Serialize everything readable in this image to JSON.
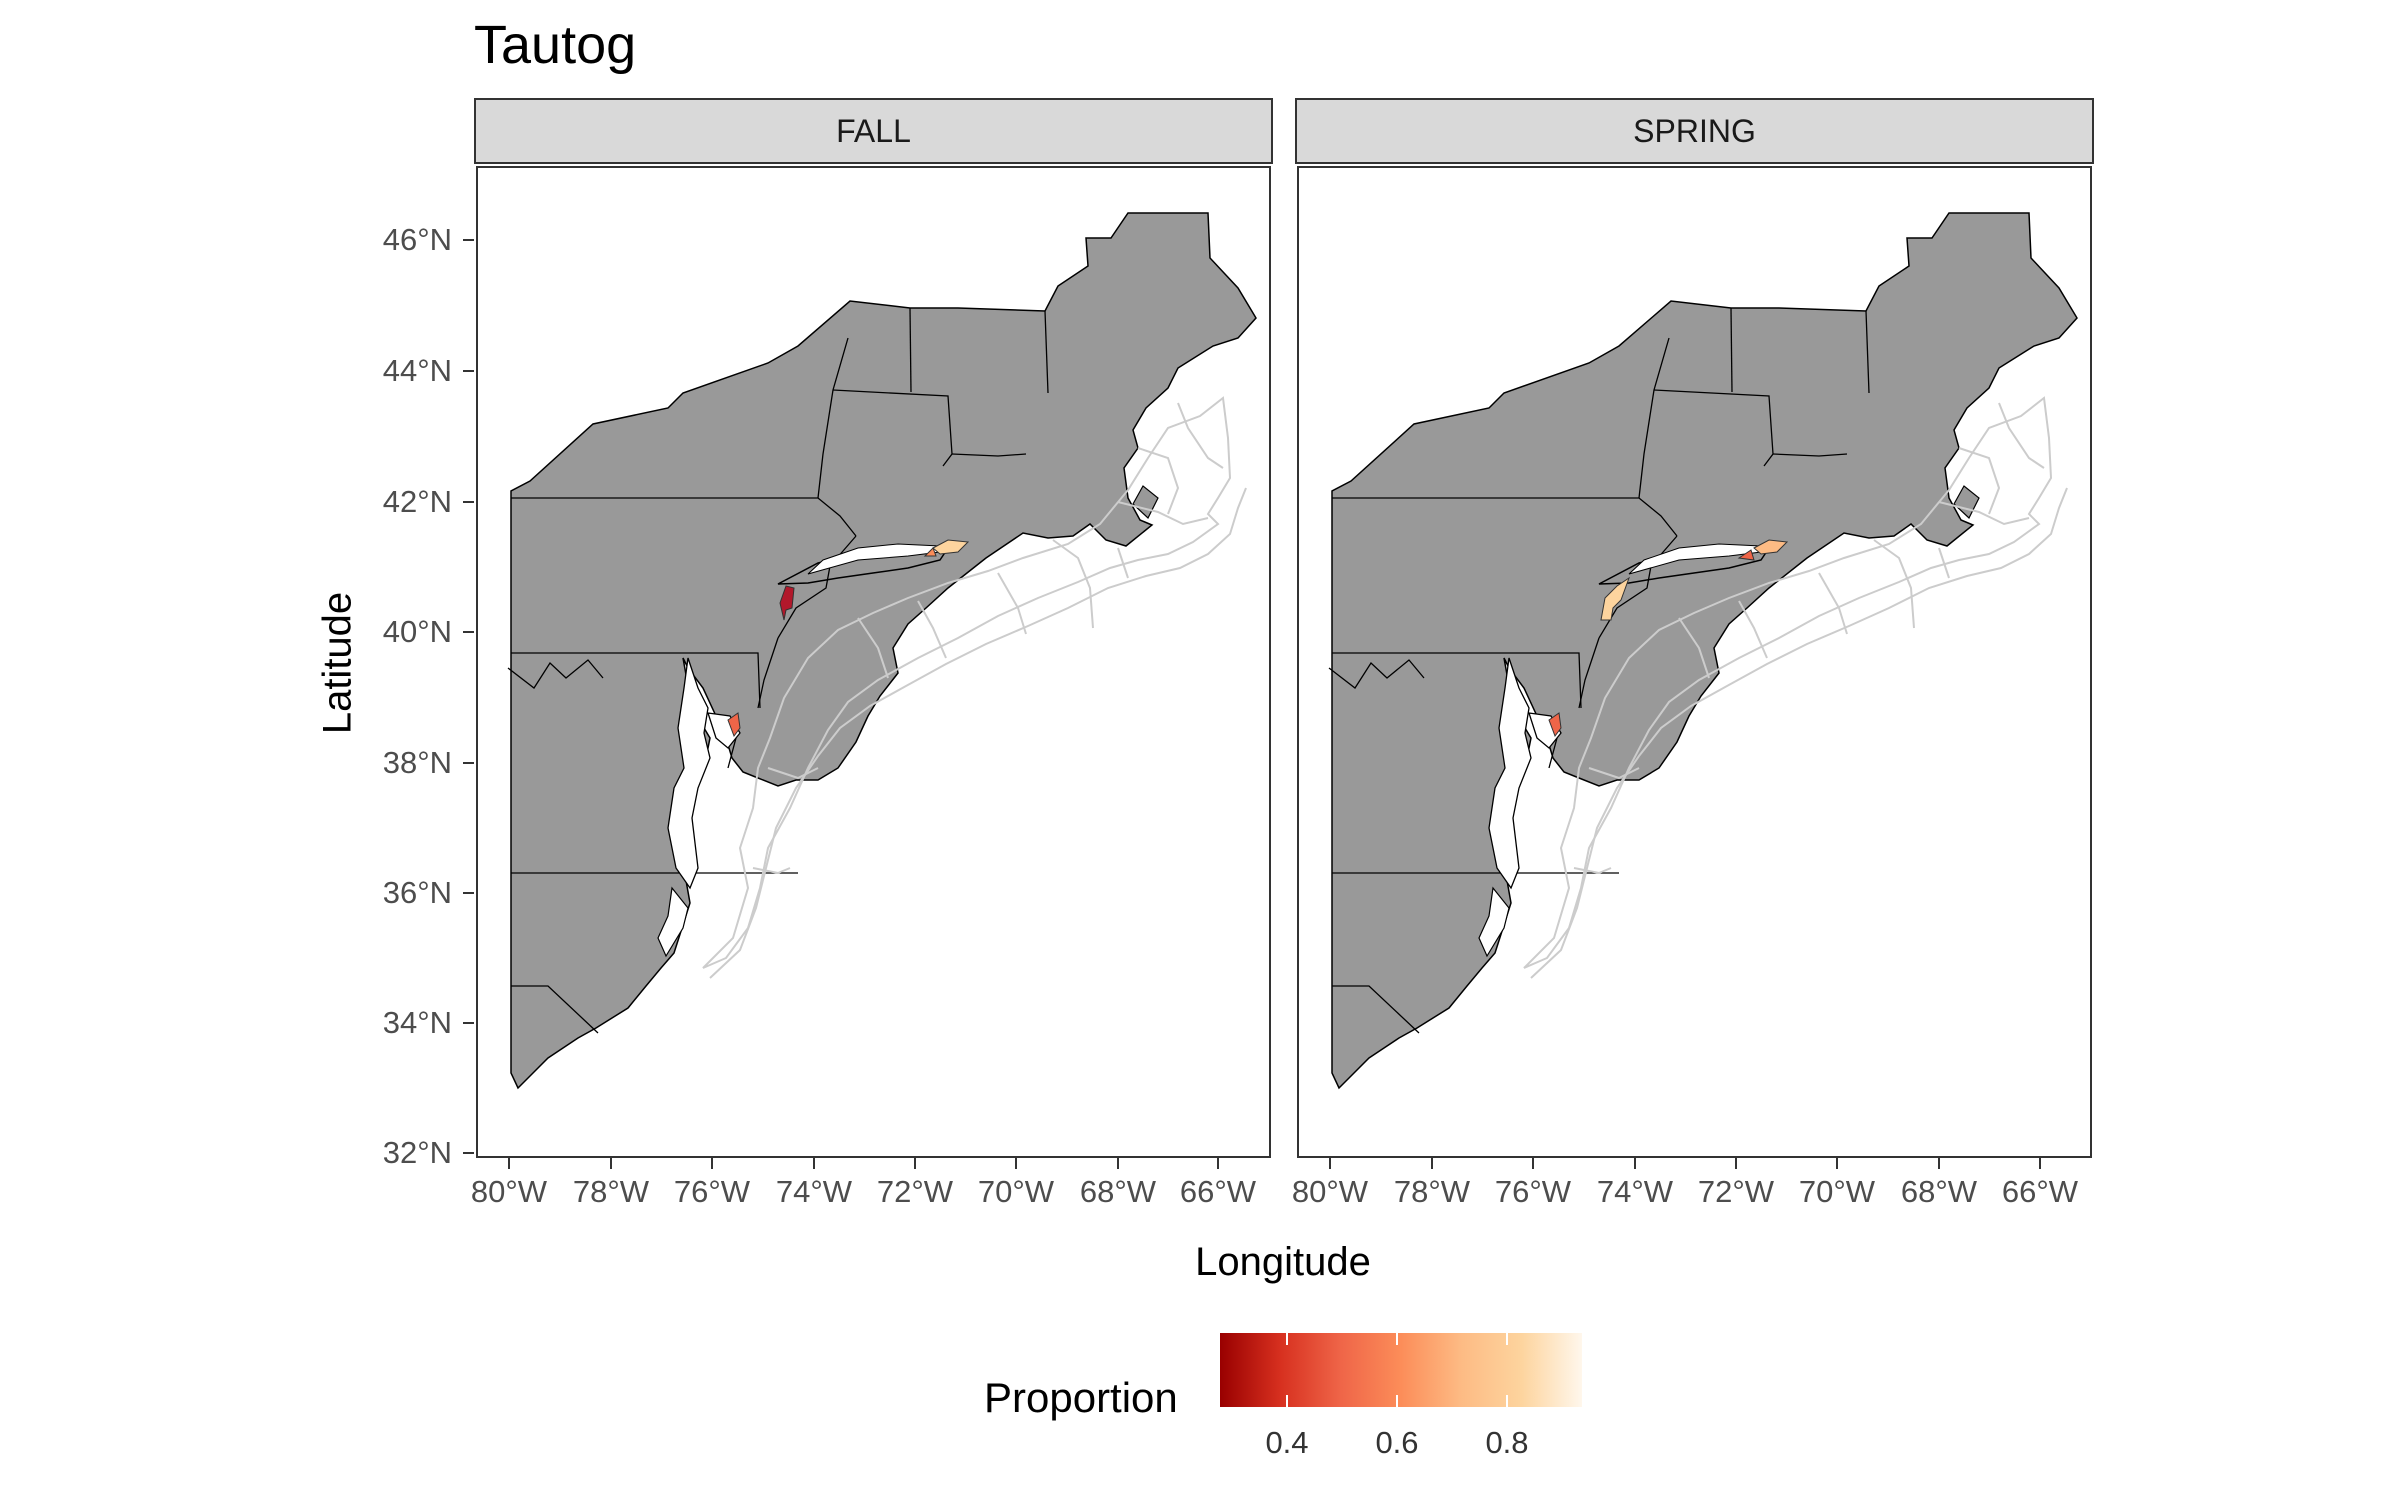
{
  "title": "Tautog",
  "axes": {
    "x_label": "Longitude",
    "y_label": "Latitude",
    "x_ticks": [
      "80°W",
      "78°W",
      "76°W",
      "74°W",
      "72°W",
      "70°W",
      "68°W",
      "66°W"
    ],
    "y_ticks": [
      "46°N",
      "44°N",
      "42°N",
      "40°N",
      "38°N",
      "36°N",
      "34°N",
      "32°N"
    ],
    "lon_range": [
      -80.8,
      -65.2
    ],
    "lat_range": [
      32.3,
      47.1
    ]
  },
  "panels": [
    {
      "label": "FALL"
    },
    {
      "label": "SPRING"
    }
  ],
  "legend": {
    "title": "Proportion",
    "scale": "OrRd (reversed)",
    "labels": [
      "0.4",
      "0.6",
      "0.8"
    ],
    "label_values": [
      0.4,
      0.6,
      0.8
    ],
    "range": [
      0.33,
      0.95
    ]
  },
  "colors": {
    "land": "#999999",
    "strata_outline": "#cccccc",
    "panel_border": "#333333",
    "strip_fill": "#d9d9d9"
  }
}
